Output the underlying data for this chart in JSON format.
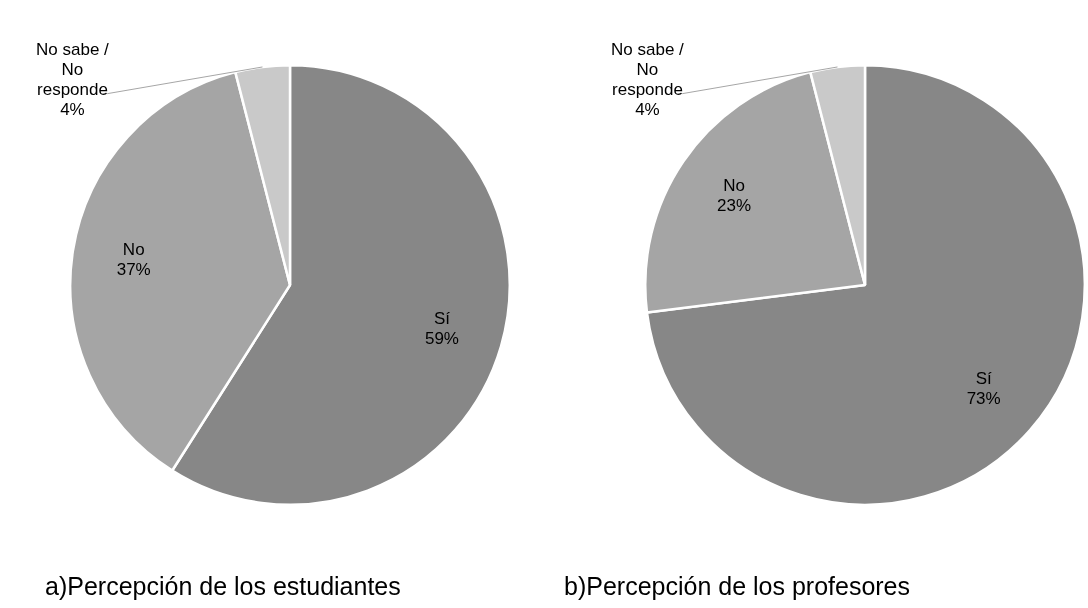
{
  "chart_data": [
    {
      "type": "pie",
      "title": "a)Percepción de los estudiantes",
      "categories": [
        "Sí",
        "No",
        "No sabe / No responde"
      ],
      "values": [
        59,
        37,
        4
      ],
      "value_labels": [
        "59%",
        "37%",
        "4%"
      ],
      "colors": [
        "#878787",
        "#a5a5a5",
        "#c9c9c9"
      ],
      "legend": false
    },
    {
      "type": "pie",
      "title": "b)Percepción de los profesores",
      "categories": [
        "Sí",
        "No",
        "No sabe / No responde"
      ],
      "values": [
        73,
        23,
        4
      ],
      "value_labels": [
        "73%",
        "23%",
        "4%"
      ],
      "colors": [
        "#878787",
        "#a5a5a5",
        "#c9c9c9"
      ],
      "legend": false
    }
  ]
}
